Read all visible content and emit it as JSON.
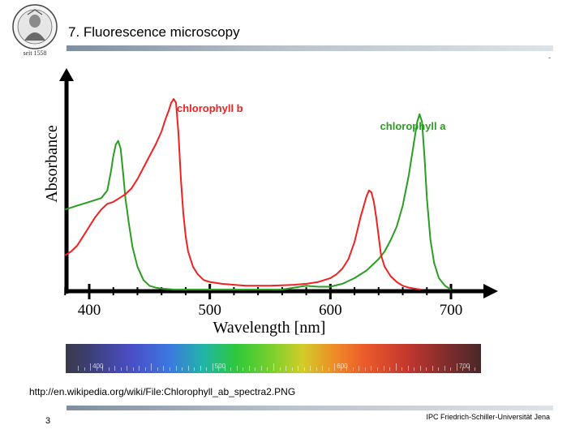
{
  "slide": {
    "title": "7. Fluorescence microscopy",
    "logo_caption": "seit 1558",
    "corner_mark": "-",
    "source_url": "http://en.wikipedia.org/wiki/File:Chlorophyll_ab_spectra2.PNG",
    "footer_org": "IPC Friedrich-Schiller-Universität Jena",
    "page_number": "3"
  },
  "chart_data": {
    "type": "line",
    "xlabel": "Wavelength [nm]",
    "ylabel": "Absorbance",
    "x_ticks": [
      400,
      500,
      600,
      700
    ],
    "xlim": [
      380,
      715
    ],
    "ylim": [
      0,
      1
    ],
    "y_tick_labels": "none",
    "series": [
      {
        "name": "chlorophyll a",
        "color": "#2a9d22",
        "x": [
          380,
          390,
          400,
          405,
          410,
          415,
          418,
          420,
          422,
          424,
          426,
          428,
          430,
          433,
          436,
          440,
          445,
          450,
          455,
          460,
          470,
          480,
          490,
          500,
          520,
          540,
          560,
          570,
          580,
          590,
          600,
          610,
          620,
          630,
          640,
          645,
          650,
          655,
          660,
          665,
          670,
          672,
          674,
          676,
          678,
          680,
          683,
          686,
          690,
          695,
          700
        ],
        "y": [
          0.42,
          0.44,
          0.46,
          0.47,
          0.48,
          0.52,
          0.62,
          0.7,
          0.76,
          0.78,
          0.74,
          0.62,
          0.48,
          0.34,
          0.22,
          0.12,
          0.05,
          0.02,
          0.01,
          0.005,
          0.0,
          0.0,
          0.0,
          0.0,
          0.0,
          0.0,
          0.0,
          0.01,
          0.02,
          0.015,
          0.015,
          0.03,
          0.06,
          0.1,
          0.16,
          0.2,
          0.26,
          0.33,
          0.44,
          0.6,
          0.8,
          0.88,
          0.92,
          0.88,
          0.7,
          0.48,
          0.26,
          0.14,
          0.06,
          0.02,
          0.0
        ]
      },
      {
        "name": "chlorophyll b",
        "color": "#ee2222",
        "x": [
          380,
          385,
          390,
          395,
          400,
          405,
          410,
          415,
          420,
          425,
          430,
          435,
          440,
          445,
          450,
          455,
          460,
          463,
          466,
          468,
          470,
          472,
          474,
          476,
          478,
          480,
          482,
          484,
          486,
          490,
          495,
          500,
          510,
          520,
          530,
          540,
          550,
          560,
          570,
          580,
          590,
          600,
          605,
          610,
          615,
          620,
          625,
          630,
          632,
          634,
          636,
          638,
          640,
          642,
          645,
          650,
          655,
          660,
          665,
          670,
          675
        ],
        "y": [
          0.18,
          0.2,
          0.23,
          0.28,
          0.33,
          0.38,
          0.42,
          0.45,
          0.46,
          0.48,
          0.5,
          0.53,
          0.58,
          0.64,
          0.7,
          0.76,
          0.83,
          0.89,
          0.94,
          0.98,
          1.0,
          0.98,
          0.82,
          0.58,
          0.4,
          0.28,
          0.2,
          0.16,
          0.12,
          0.08,
          0.05,
          0.04,
          0.03,
          0.025,
          0.02,
          0.02,
          0.02,
          0.022,
          0.025,
          0.03,
          0.04,
          0.06,
          0.08,
          0.11,
          0.16,
          0.25,
          0.38,
          0.49,
          0.52,
          0.51,
          0.46,
          0.38,
          0.28,
          0.18,
          0.12,
          0.07,
          0.04,
          0.02,
          0.01,
          0.005,
          0.0
        ]
      }
    ],
    "annotations": [
      {
        "text": "chlorophyll b",
        "color": "#ee2222",
        "near": "red peak"
      },
      {
        "text": "chlorophyll a",
        "color": "#2a9d22",
        "near": "green peak"
      }
    ],
    "spectrum_bar_labels": [
      "400",
      "500",
      "600",
      "700"
    ]
  }
}
